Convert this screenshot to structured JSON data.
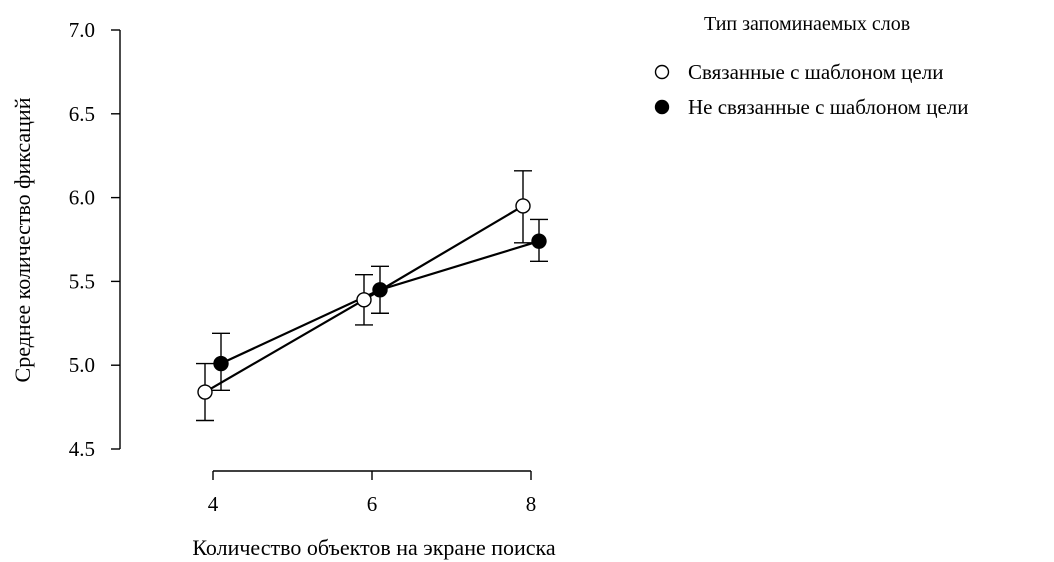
{
  "chart_data": {
    "type": "line",
    "xlabel": "Количество объектов на экране поиска",
    "ylabel": "Среднее количество фиксаций",
    "categories": [
      "4",
      "6",
      "8"
    ],
    "x": [
      4,
      6,
      8
    ],
    "x_tick_labels": [
      "4",
      "6",
      "8"
    ],
    "xlim": [
      4,
      8
    ],
    "ylim": [
      4.5,
      7.0
    ],
    "y_ticks": [
      4.5,
      5.0,
      5.5,
      6.0,
      6.5,
      7.0
    ],
    "y_tick_labels": [
      "4.5",
      "5.0",
      "5.5",
      "6.0",
      "6.5",
      "7.0"
    ],
    "grid": false,
    "legend": {
      "title": "Тип запоминаемых слов",
      "placement": "top-right"
    },
    "series": [
      {
        "name": "Связанные с шаблоном цели",
        "marker": "open-circle",
        "values": [
          4.84,
          5.39,
          5.95
        ],
        "err_low": [
          4.67,
          5.24,
          5.73
        ],
        "err_high": [
          5.01,
          5.54,
          6.16
        ]
      },
      {
        "name": "Не связанные с шаблоном цели",
        "marker": "filled-circle",
        "values": [
          5.01,
          5.45,
          5.74
        ],
        "err_low": [
          4.85,
          5.31,
          5.62
        ],
        "err_high": [
          5.19,
          5.59,
          5.87
        ]
      }
    ],
    "colors": {
      "line": "#000000",
      "open_fill": "#ffffff",
      "filled_fill": "#000000"
    }
  }
}
